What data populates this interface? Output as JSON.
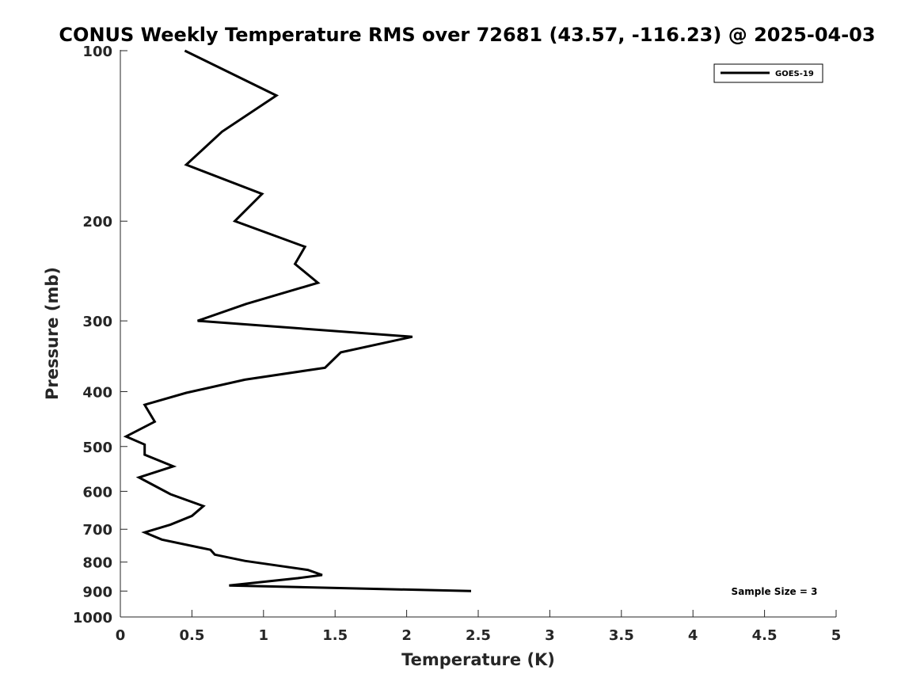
{
  "chart_data": {
    "type": "line",
    "title": "CONUS Weekly Temperature RMS over 72681 (43.57, -116.23) @ 2025-04-03",
    "xlabel": "Temperature (K)",
    "ylabel": "Pressure (mb)",
    "xlim": [
      0,
      5
    ],
    "ylim": [
      100,
      1000
    ],
    "y_scale": "log",
    "y_reversed": true,
    "grid": false,
    "legend_position": "top-right",
    "x_ticks": [
      "0",
      "0.5",
      "1",
      "1.5",
      "2",
      "2.5",
      "3",
      "3.5",
      "4",
      "4.5",
      "5"
    ],
    "y_ticks": [
      "100",
      "200",
      "300",
      "400",
      "500",
      "600",
      "700",
      "800",
      "900",
      "1000"
    ],
    "series": [
      {
        "name": "GOES-19",
        "color": "#000000",
        "points": [
          [
            0.45,
            100
          ],
          [
            1.09,
            120
          ],
          [
            0.71,
            139
          ],
          [
            0.46,
            159
          ],
          [
            0.99,
            179
          ],
          [
            0.8,
            200
          ],
          [
            1.29,
            222
          ],
          [
            1.22,
            238
          ],
          [
            1.38,
            257
          ],
          [
            0.88,
            280
          ],
          [
            0.54,
            300
          ],
          [
            2.04,
            320
          ],
          [
            1.54,
            341
          ],
          [
            1.43,
            363
          ],
          [
            0.87,
            381
          ],
          [
            0.46,
            402
          ],
          [
            0.17,
            422
          ],
          [
            0.24,
            452
          ],
          [
            0.04,
            480
          ],
          [
            0.17,
            496
          ],
          [
            0.17,
            517
          ],
          [
            0.37,
            542
          ],
          [
            0.13,
            567
          ],
          [
            0.22,
            583
          ],
          [
            0.35,
            607
          ],
          [
            0.58,
            637
          ],
          [
            0.5,
            663
          ],
          [
            0.35,
            687
          ],
          [
            0.17,
            709
          ],
          [
            0.29,
            730
          ],
          [
            0.63,
            761
          ],
          [
            0.66,
            776
          ],
          [
            0.87,
            796
          ],
          [
            1.31,
            826
          ],
          [
            1.41,
            843
          ],
          [
            1.24,
            854
          ],
          [
            0.76,
            880
          ],
          [
            2.45,
            900
          ]
        ]
      }
    ],
    "annotations": [
      "Sample Size = 3"
    ]
  }
}
